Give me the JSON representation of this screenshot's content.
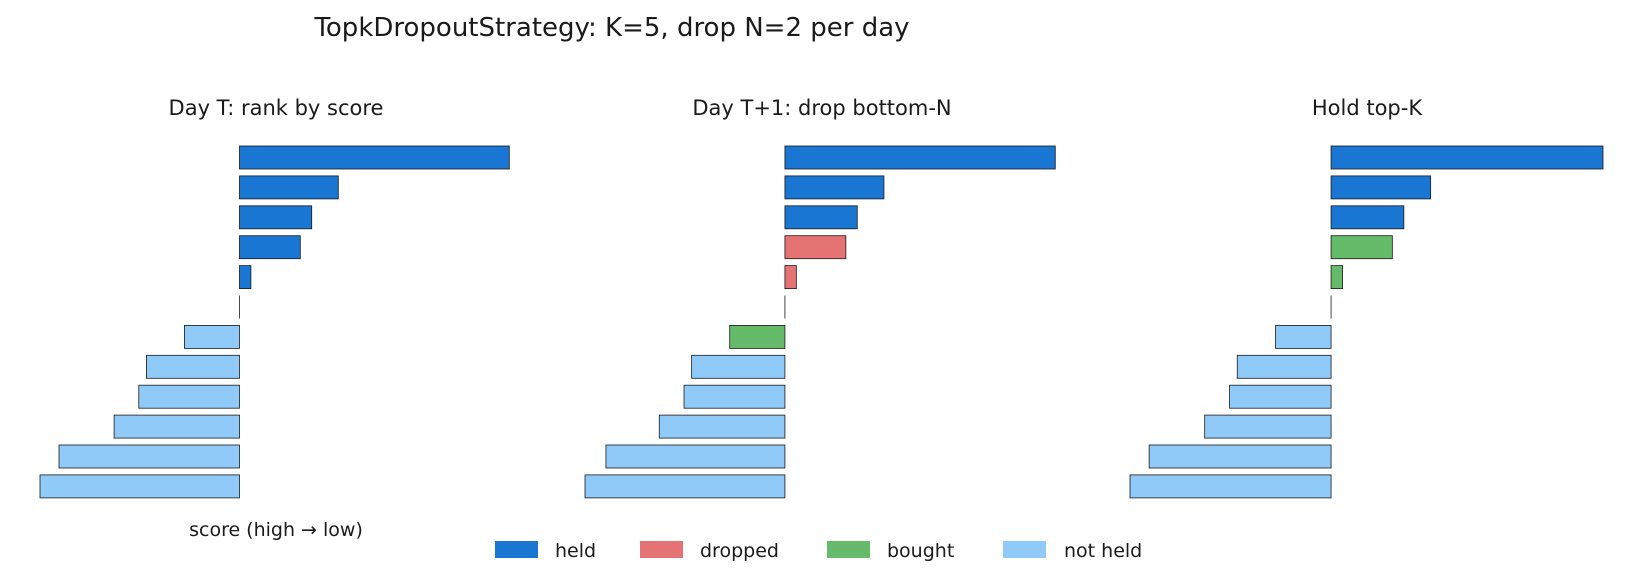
{
  "title": "TopkDropoutStrategy: K=5, drop N=2 per day",
  "colors": {
    "held": "#1976d2",
    "dropped": "#e57373",
    "bought": "#66bb6a",
    "not_held": "#90caf9",
    "edge": "#1a1a1a"
  },
  "legend": [
    {
      "key": "held",
      "label": "held"
    },
    {
      "key": "dropped",
      "label": "dropped"
    },
    {
      "key": "bought",
      "label": "bought"
    },
    {
      "key": "not_held",
      "label": "not held"
    }
  ],
  "chart_data": [
    {
      "type": "bar",
      "orientation": "horizontal",
      "title": "Day T: rank by score",
      "xlabel": "score (high → low)",
      "ylabel": "",
      "xlim": [
        -1.05,
        1.45
      ],
      "grid": false,
      "bars": [
        {
          "value": 1.42,
          "status": "held"
        },
        {
          "value": 0.52,
          "status": "held"
        },
        {
          "value": 0.38,
          "status": "held"
        },
        {
          "value": 0.32,
          "status": "held"
        },
        {
          "value": 0.06,
          "status": "held"
        },
        {
          "value": 0.0,
          "status": "not_held"
        },
        {
          "value": -0.29,
          "status": "not_held"
        },
        {
          "value": -0.49,
          "status": "not_held"
        },
        {
          "value": -0.53,
          "status": "not_held"
        },
        {
          "value": -0.66,
          "status": "not_held"
        },
        {
          "value": -0.95,
          "status": "not_held"
        },
        {
          "value": -1.05,
          "status": "not_held"
        }
      ]
    },
    {
      "type": "bar",
      "orientation": "horizontal",
      "title": "Day T+1: drop bottom-N",
      "xlabel": "",
      "ylabel": "",
      "xlim": [
        -1.05,
        1.45
      ],
      "grid": false,
      "bars": [
        {
          "value": 1.42,
          "status": "held"
        },
        {
          "value": 0.52,
          "status": "held"
        },
        {
          "value": 0.38,
          "status": "held"
        },
        {
          "value": 0.32,
          "status": "dropped"
        },
        {
          "value": 0.06,
          "status": "dropped"
        },
        {
          "value": 0.0,
          "status": "not_held"
        },
        {
          "value": -0.29,
          "status": "bought"
        },
        {
          "value": -0.49,
          "status": "not_held"
        },
        {
          "value": -0.53,
          "status": "not_held"
        },
        {
          "value": -0.66,
          "status": "not_held"
        },
        {
          "value": -0.94,
          "status": "not_held"
        },
        {
          "value": -1.05,
          "status": "not_held"
        }
      ]
    },
    {
      "type": "bar",
      "orientation": "horizontal",
      "title": "Hold top-K",
      "xlabel": "",
      "ylabel": "",
      "xlim": [
        -1.05,
        1.42
      ],
      "grid": false,
      "bars": [
        {
          "value": 1.42,
          "status": "held"
        },
        {
          "value": 0.52,
          "status": "held"
        },
        {
          "value": 0.38,
          "status": "held"
        },
        {
          "value": 0.32,
          "status": "bought"
        },
        {
          "value": 0.06,
          "status": "bought"
        },
        {
          "value": 0.0,
          "status": "not_held"
        },
        {
          "value": -0.29,
          "status": "not_held"
        },
        {
          "value": -0.49,
          "status": "not_held"
        },
        {
          "value": -0.53,
          "status": "not_held"
        },
        {
          "value": -0.66,
          "status": "not_held"
        },
        {
          "value": -0.95,
          "status": "not_held"
        },
        {
          "value": -1.05,
          "status": "not_held"
        }
      ]
    }
  ]
}
